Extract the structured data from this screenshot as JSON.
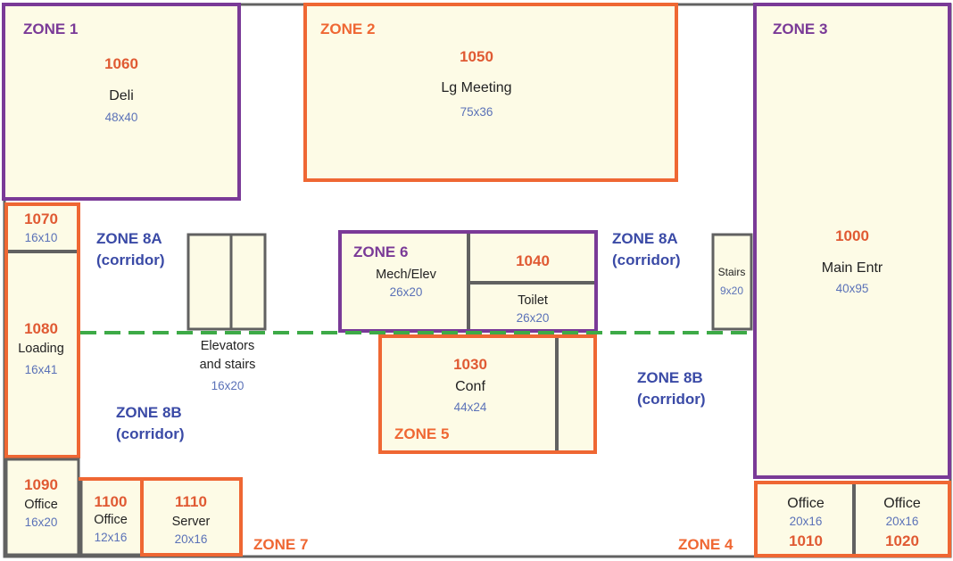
{
  "colors": {
    "room_fill": "#fdfbe6",
    "wall": "#616161",
    "orange": "#ef6733",
    "purple": "#7a3a97",
    "blue_text": "#3a4aa6",
    "dim_text": "#5b72b8",
    "number_text": "#e05a33",
    "divider_green": "#3daa47"
  },
  "zones": {
    "z1": "ZONE 1",
    "z2": "ZONE 2",
    "z3": "ZONE 3",
    "z4": "ZONE 4",
    "z5": "ZONE 5",
    "z6": "ZONE 6",
    "z7": "ZONE 7",
    "z8a": {
      "title": "ZONE 8A",
      "sub": "(corridor)"
    },
    "z8b": {
      "title": "ZONE 8B",
      "sub": "(corridor)"
    }
  },
  "rooms": {
    "r1060": {
      "number": "1060",
      "name": "Deli",
      "dims": "48x40"
    },
    "r1050": {
      "number": "1050",
      "name": "Lg Meeting",
      "dims": "75x36"
    },
    "r1000": {
      "number": "1000",
      "name": "Main Entr",
      "dims": "40x95"
    },
    "r1070": {
      "number": "1070",
      "dims": "16x10"
    },
    "r1080": {
      "number": "1080",
      "name": "Loading",
      "dims": "16x41"
    },
    "r1090": {
      "number": "1090",
      "name": "Office",
      "dims": "16x20"
    },
    "r1100": {
      "number": "1100",
      "name": "Office",
      "dims": "12x16"
    },
    "r1110": {
      "number": "1110",
      "name": "Server",
      "dims": "20x16"
    },
    "r1010": {
      "number": "1010",
      "name": "Office",
      "dims": "20x16"
    },
    "r1020": {
      "number": "1020",
      "name": "Office",
      "dims": "20x16"
    },
    "r1030": {
      "number": "1030",
      "name": "Conf",
      "dims": "44x24"
    },
    "r1040": {
      "number": "1040",
      "toilet": "Toilet",
      "dims": "26x20"
    },
    "mech": {
      "name": "Mech/Elev",
      "dims": "26x20"
    },
    "stairs": {
      "name": "Stairs",
      "dims": "9x20"
    },
    "elevators": {
      "name_line1": "Elevators",
      "name_line2": "and stairs",
      "dims": "16x20"
    }
  }
}
